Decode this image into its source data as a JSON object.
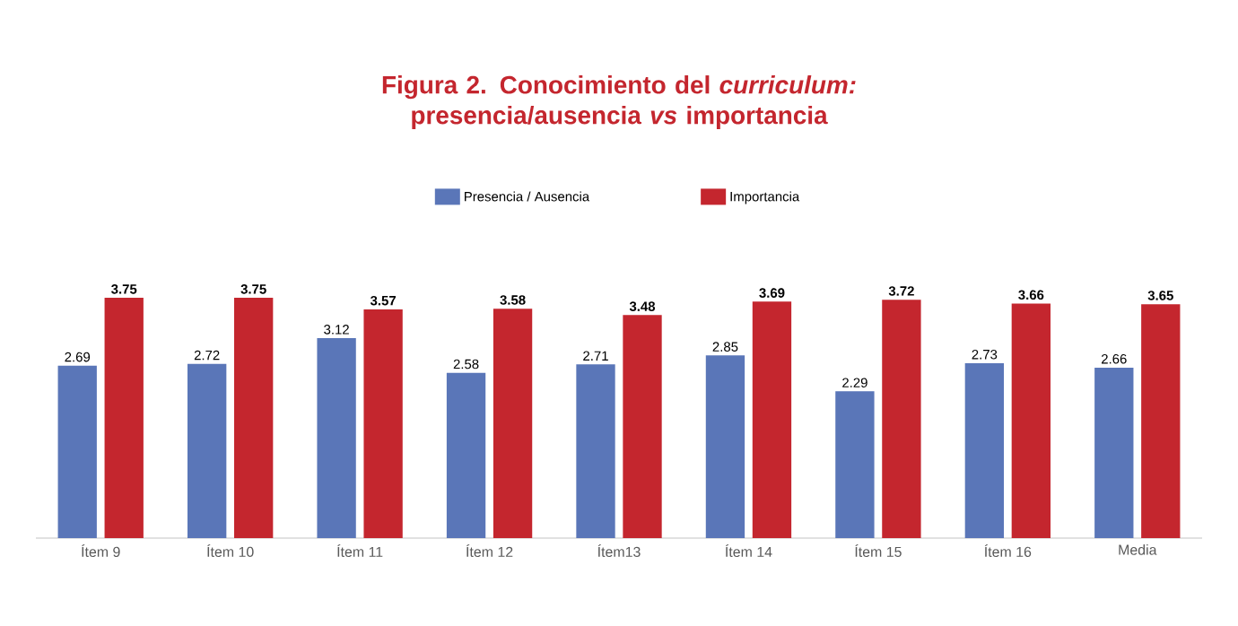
{
  "chart_data": {
    "type": "bar",
    "title": "Figura 2. Conocimiento del *curriculum:* presencia/ausencia *vs* importancia",
    "categories": [
      "Ítem 9",
      "Ítem 10",
      "Ítem 11",
      "Ítem 12",
      "Ítem13",
      "Ítem 14",
      "Ítem 15",
      "Ítem 16",
      "Media"
    ],
    "series": [
      {
        "name": "Presencia / Ausencia",
        "color": "#5a76b8",
        "values": [
          2.69,
          2.72,
          3.12,
          2.58,
          2.71,
          2.85,
          2.29,
          2.73,
          2.66
        ]
      },
      {
        "name": "Importancia",
        "color": "#c4262e",
        "values": [
          3.75,
          3.75,
          3.57,
          3.58,
          3.48,
          3.69,
          3.72,
          3.66,
          3.65
        ]
      }
    ],
    "data_labels": true,
    "legend": "top"
  }
}
